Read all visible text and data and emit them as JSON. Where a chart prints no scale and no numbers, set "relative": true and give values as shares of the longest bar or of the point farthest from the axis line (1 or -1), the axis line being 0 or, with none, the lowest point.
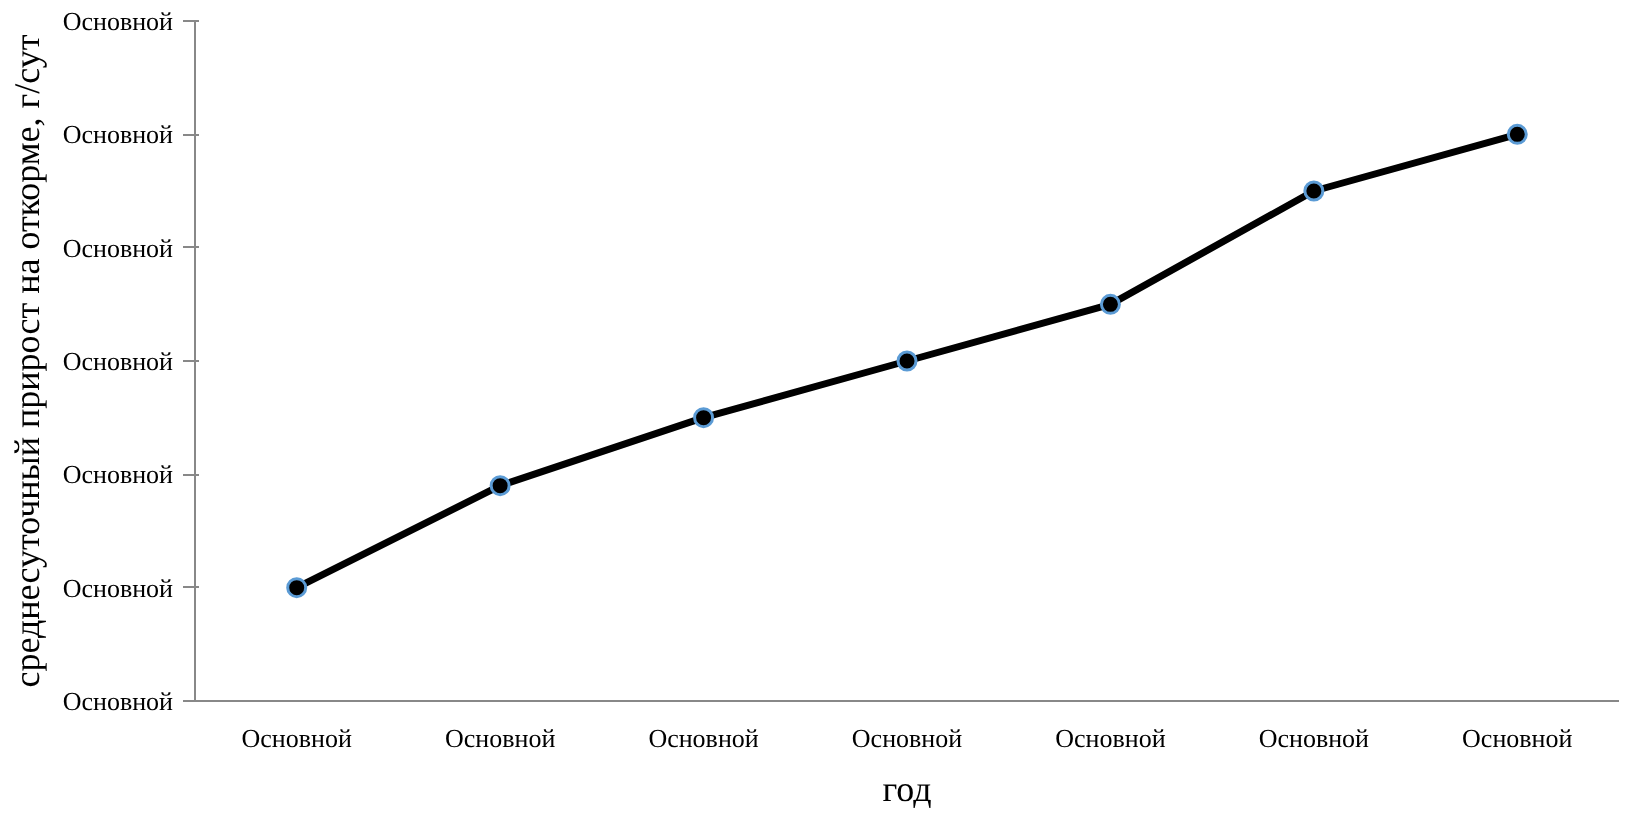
{
  "chart_data": {
    "type": "line",
    "xlabel": "год",
    "ylabel": "среднесуточный прирост на откорме, г/сут",
    "categories": [
      "Основной",
      "Основной",
      "Основной",
      "Основной",
      "Основной",
      "Основной",
      "Основной"
    ],
    "series": [
      {
        "color": "#000000",
        "values": [
          0.2,
          0.38,
          0.5,
          0.6,
          0.7,
          0.9,
          1.0
        ]
      }
    ],
    "relative": true,
    "annotations": [
      "Основной",
      "Основной",
      "Основной",
      "Основной",
      "Основной",
      "Основной",
      "Основной"
    ],
    "marker": "circle",
    "line_style": "solid",
    "grid": false
  }
}
